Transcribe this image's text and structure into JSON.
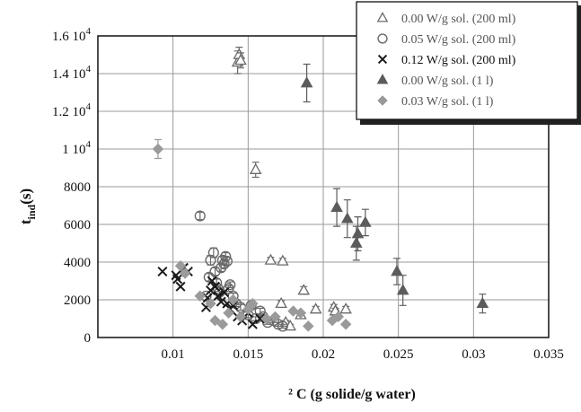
{
  "chart_data": {
    "type": "scatter",
    "xlabel": "² C (g solide/g water)",
    "ylabel": "t",
    "ylabel_sub": "ind",
    "ylabel_suffix": "(s)",
    "xlim": [
      0.005,
      0.035
    ],
    "ylim": [
      0,
      16000
    ],
    "grid": true,
    "legend_position": "top-right",
    "x_ticks": [
      {
        "value": 0.01,
        "label": "0.01"
      },
      {
        "value": 0.015,
        "label": "0.015"
      },
      {
        "value": 0.02,
        "label": "0.02"
      },
      {
        "value": 0.025,
        "label": "0.025"
      },
      {
        "value": 0.03,
        "label": "0.03"
      },
      {
        "value": 0.035,
        "label": "0.035"
      }
    ],
    "y_ticks": [
      {
        "value": 0,
        "label": "0",
        "base": "0",
        "exp": ""
      },
      {
        "value": 2000,
        "label": "2000",
        "base": "2000",
        "exp": ""
      },
      {
        "value": 4000,
        "label": "4000",
        "base": "4000",
        "exp": ""
      },
      {
        "value": 6000,
        "label": "6000",
        "base": "6000",
        "exp": ""
      },
      {
        "value": 8000,
        "label": "8000",
        "base": "8000",
        "exp": ""
      },
      {
        "value": 10000,
        "label": "1 10 4",
        "base": "1 10",
        "exp": "4"
      },
      {
        "value": 12000,
        "label": "1.2 10 4",
        "base": "1.2 10",
        "exp": "4"
      },
      {
        "value": 14000,
        "label": "1.4 10 4",
        "base": "1.4 10",
        "exp": "4"
      },
      {
        "value": 16000,
        "label": "1.6 10 4",
        "base": "1.6 10",
        "exp": "4"
      }
    ],
    "series": [
      {
        "name": "0.00 W/g sol. (200 ml)",
        "marker": "triangle-open",
        "color": "#6a6a6a",
        "points": [
          {
            "x": 0.0143,
            "y": 14600,
            "err": 600
          },
          {
            "x": 0.0144,
            "y": 15000,
            "err": 400
          },
          {
            "x": 0.0145,
            "y": 14700,
            "err": 400
          },
          {
            "x": 0.0155,
            "y": 8900,
            "err": 400
          },
          {
            "x": 0.0165,
            "y": 4100,
            "err": 150
          },
          {
            "x": 0.0173,
            "y": 4050,
            "err": 150
          },
          {
            "x": 0.0172,
            "y": 1800,
            "err": 150
          },
          {
            "x": 0.0175,
            "y": 800,
            "err": 100
          },
          {
            "x": 0.0178,
            "y": 600,
            "err": 100
          },
          {
            "x": 0.0185,
            "y": 1200,
            "err": 100
          },
          {
            "x": 0.0187,
            "y": 2500,
            "err": 200
          },
          {
            "x": 0.0195,
            "y": 1500,
            "err": 150
          },
          {
            "x": 0.0207,
            "y": 1600,
            "err": 150
          },
          {
            "x": 0.0208,
            "y": 1400,
            "err": 150
          },
          {
            "x": 0.0215,
            "y": 1500,
            "err": 150
          }
        ]
      },
      {
        "name": "0.05 W/g sol. (200 ml)",
        "marker": "circle-open",
        "color": "#6a6a6a",
        "points": [
          {
            "x": 0.0118,
            "y": 6450,
            "err": 200
          },
          {
            "x": 0.0122,
            "y": 2200,
            "err": 0
          },
          {
            "x": 0.0124,
            "y": 3200,
            "err": 200
          },
          {
            "x": 0.0125,
            "y": 4100,
            "err": 250
          },
          {
            "x": 0.0127,
            "y": 4500,
            "err": 250
          },
          {
            "x": 0.0128,
            "y": 3500,
            "err": 200
          },
          {
            "x": 0.0129,
            "y": 2900,
            "err": 200
          },
          {
            "x": 0.013,
            "y": 2600,
            "err": 150
          },
          {
            "x": 0.0131,
            "y": 2400,
            "err": 150
          },
          {
            "x": 0.0132,
            "y": 3700,
            "err": 200
          },
          {
            "x": 0.0133,
            "y": 4100,
            "err": 200
          },
          {
            "x": 0.0134,
            "y": 3900,
            "err": 200
          },
          {
            "x": 0.0135,
            "y": 4300,
            "err": 200
          },
          {
            "x": 0.0136,
            "y": 4050,
            "err": 200
          },
          {
            "x": 0.0137,
            "y": 2600,
            "err": 150
          },
          {
            "x": 0.0138,
            "y": 2800,
            "err": 150
          },
          {
            "x": 0.014,
            "y": 2200,
            "err": 150
          },
          {
            "x": 0.0142,
            "y": 1800,
            "err": 150
          },
          {
            "x": 0.0145,
            "y": 1600,
            "err": 150
          },
          {
            "x": 0.015,
            "y": 1200,
            "err": 150
          },
          {
            "x": 0.0152,
            "y": 1700,
            "err": 150
          },
          {
            "x": 0.0155,
            "y": 1000,
            "err": 100
          },
          {
            "x": 0.0158,
            "y": 1400,
            "err": 150
          },
          {
            "x": 0.016,
            "y": 1100,
            "err": 100
          },
          {
            "x": 0.0163,
            "y": 800,
            "err": 100
          },
          {
            "x": 0.0167,
            "y": 900,
            "err": 100
          },
          {
            "x": 0.017,
            "y": 700,
            "err": 100
          },
          {
            "x": 0.0173,
            "y": 600,
            "err": 100
          }
        ]
      },
      {
        "name": "0.12 W/g sol. (200 ml)",
        "marker": "x",
        "color": "#1a1a1a",
        "points": [
          {
            "x": 0.0093,
            "y": 3500,
            "err": 0
          },
          {
            "x": 0.0102,
            "y": 3300,
            "err": 0
          },
          {
            "x": 0.0103,
            "y": 3100,
            "err": 0
          },
          {
            "x": 0.0105,
            "y": 2700,
            "err": 0
          },
          {
            "x": 0.0107,
            "y": 3700,
            "err": 0
          },
          {
            "x": 0.011,
            "y": 3500,
            "err": 0
          },
          {
            "x": 0.0122,
            "y": 1600,
            "err": 0
          },
          {
            "x": 0.0123,
            "y": 2100,
            "err": 0
          },
          {
            "x": 0.0125,
            "y": 2500,
            "err": 0
          },
          {
            "x": 0.0126,
            "y": 3000,
            "err": 0
          },
          {
            "x": 0.0128,
            "y": 2700,
            "err": 0
          },
          {
            "x": 0.013,
            "y": 2200,
            "err": 0
          },
          {
            "x": 0.0132,
            "y": 1900,
            "err": 0
          },
          {
            "x": 0.0134,
            "y": 2400,
            "err": 0
          },
          {
            "x": 0.0136,
            "y": 1800,
            "err": 0
          },
          {
            "x": 0.0138,
            "y": 1500,
            "err": 0
          },
          {
            "x": 0.014,
            "y": 1700,
            "err": 0
          },
          {
            "x": 0.0143,
            "y": 1100,
            "err": 0
          },
          {
            "x": 0.0146,
            "y": 900,
            "err": 0
          },
          {
            "x": 0.015,
            "y": 1300,
            "err": 0
          },
          {
            "x": 0.0153,
            "y": 700,
            "err": 0
          },
          {
            "x": 0.0158,
            "y": 1000,
            "err": 0
          }
        ]
      },
      {
        "name": "0.00 W/g sol. (1 l)",
        "marker": "triangle-filled",
        "color": "#5c5c5c",
        "points": [
          {
            "x": 0.0189,
            "y": 13500,
            "err": 1000
          },
          {
            "x": 0.0209,
            "y": 6900,
            "err": 1000
          },
          {
            "x": 0.0216,
            "y": 6300,
            "err": 1000
          },
          {
            "x": 0.0222,
            "y": 5000,
            "err": 900
          },
          {
            "x": 0.0223,
            "y": 5500,
            "err": 900
          },
          {
            "x": 0.0228,
            "y": 6100,
            "err": 700
          },
          {
            "x": 0.0249,
            "y": 3500,
            "err": 700
          },
          {
            "x": 0.0253,
            "y": 2500,
            "err": 800
          },
          {
            "x": 0.0306,
            "y": 1800,
            "err": 500
          }
        ]
      },
      {
        "name": "0.03 W/g sol. (1 l)",
        "marker": "diamond-filled",
        "color": "#9a9a9a",
        "points": [
          {
            "x": 0.009,
            "y": 10000,
            "err": 500
          },
          {
            "x": 0.0105,
            "y": 3800,
            "err": 0
          },
          {
            "x": 0.0108,
            "y": 3400,
            "err": 0
          },
          {
            "x": 0.0118,
            "y": 2200,
            "err": 0
          },
          {
            "x": 0.0125,
            "y": 1800,
            "err": 0
          },
          {
            "x": 0.0128,
            "y": 900,
            "err": 0
          },
          {
            "x": 0.0133,
            "y": 700,
            "err": 0
          },
          {
            "x": 0.0137,
            "y": 1300,
            "err": 0
          },
          {
            "x": 0.014,
            "y": 2000,
            "err": 0
          },
          {
            "x": 0.0145,
            "y": 1100,
            "err": 0
          },
          {
            "x": 0.015,
            "y": 1500,
            "err": 0
          },
          {
            "x": 0.0153,
            "y": 1800,
            "err": 0
          },
          {
            "x": 0.0162,
            "y": 1000,
            "err": 0
          },
          {
            "x": 0.0168,
            "y": 1100,
            "err": 0
          },
          {
            "x": 0.018,
            "y": 1400,
            "err": 0
          },
          {
            "x": 0.0185,
            "y": 1300,
            "err": 0
          },
          {
            "x": 0.019,
            "y": 600,
            "err": 0
          },
          {
            "x": 0.0206,
            "y": 900,
            "err": 0
          },
          {
            "x": 0.021,
            "y": 1100,
            "err": 0
          },
          {
            "x": 0.0215,
            "y": 700,
            "err": 0
          }
        ]
      }
    ]
  }
}
